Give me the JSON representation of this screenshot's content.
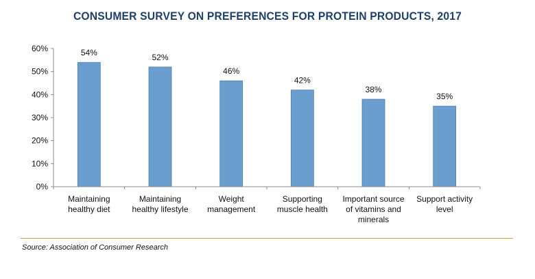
{
  "chart_data": {
    "type": "bar",
    "title": "CONSUMER SURVEY ON PREFERENCES FOR PROTEIN PRODUCTS, 2017",
    "categories": [
      [
        "Maintaining",
        "healthy diet"
      ],
      [
        "Maintaining",
        "healthy lifestyle"
      ],
      [
        "Weight",
        "management"
      ],
      [
        "Supporting",
        "muscle health"
      ],
      [
        "Important source",
        "of vitamins and",
        "minerals"
      ],
      [
        "Support activity",
        "level"
      ]
    ],
    "values": [
      54,
      52,
      46,
      42,
      38,
      35
    ],
    "data_labels": [
      "54%",
      "52%",
      "46%",
      "42%",
      "38%",
      "35%"
    ],
    "ylim": [
      0,
      60
    ],
    "yticks": [
      0,
      10,
      20,
      30,
      40,
      50,
      60
    ],
    "ytick_labels": [
      "0%",
      "10%",
      "20%",
      "30%",
      "40%",
      "50%",
      "60%"
    ],
    "grid": false,
    "bar_color": "#6a9ecf",
    "bar_edge_color": "#4f80b0"
  },
  "source": "Source: Association of Consumer Research"
}
